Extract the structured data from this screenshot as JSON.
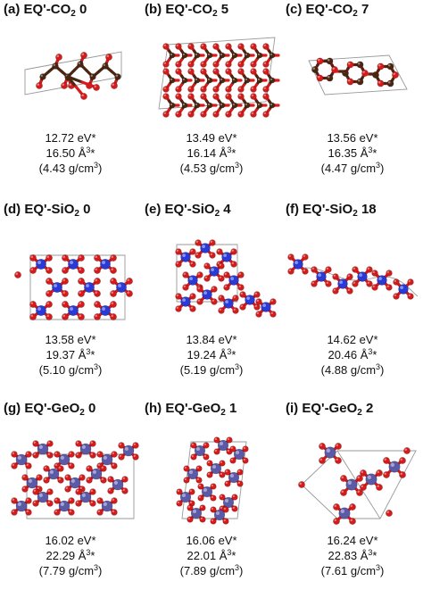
{
  "panels": [
    {
      "label": "(a) EQ'-CO",
      "sub": "2",
      "num": " 0",
      "energy": "12.72 eV*",
      "volume": "16.50 Å",
      "density": "(4.43 g/cm",
      "struct": "co2_0"
    },
    {
      "label": "(b) EQ'-CO",
      "sub": "2",
      "num": " 5",
      "energy": "13.49 eV*",
      "volume": "16.14 Å",
      "density": "(4.53 g/cm",
      "struct": "co2_5"
    },
    {
      "label": "(c) EQ'-CO",
      "sub": "2",
      "num": " 7",
      "energy": "13.56 eV*",
      "volume": "16.35 Å",
      "density": "(4.47 g/cm",
      "struct": "co2_7"
    },
    {
      "label": "(d) EQ'-SiO",
      "sub": "2",
      "num": " 0",
      "energy": "13.58 eV*",
      "volume": "19.37 Å",
      "density": "(5.10 g/cm",
      "struct": "sio2_0"
    },
    {
      "label": "(e) EQ'-SiO",
      "sub": "2",
      "num": " 4",
      "energy": "13.84 eV*",
      "volume": "19.24 Å",
      "density": "(5.19 g/cm",
      "struct": "sio2_4"
    },
    {
      "label": "(f) EQ'-SiO",
      "sub": "2",
      "num": " 18",
      "energy": "14.62 eV*",
      "volume": "20.46 Å",
      "density": "(4.88 g/cm",
      "struct": "sio2_18"
    },
    {
      "label": "(g) EQ'-GeO",
      "sub": "2",
      "num": " 0",
      "energy": "16.02 eV*",
      "volume": "22.29 Å",
      "density": "(7.79 g/cm",
      "struct": "geo2_0"
    },
    {
      "label": "(h) EQ'-GeO",
      "sub": "2",
      "num": " 1",
      "energy": "16.06 eV*",
      "volume": "22.01 Å",
      "density": "(7.89 g/cm",
      "struct": "geo2_1"
    },
    {
      "label": "(i) EQ'-GeO",
      "sub": "2",
      "num": " 2",
      "energy": "16.24 eV*",
      "volume": "22.83 Å",
      "density": "(7.61 g/cm",
      "struct": "geo2_2"
    }
  ],
  "units": {
    "vol_sup": "3",
    "vol_tail": "*",
    "den_sup": "3",
    "den_tail": ")"
  },
  "colors": {
    "oxygen": "#d91a1a",
    "carbon": "#4a2612",
    "silicon": "#2a3ad8",
    "germanium": "#5a5aa8",
    "cell": "#9a9a9a"
  }
}
